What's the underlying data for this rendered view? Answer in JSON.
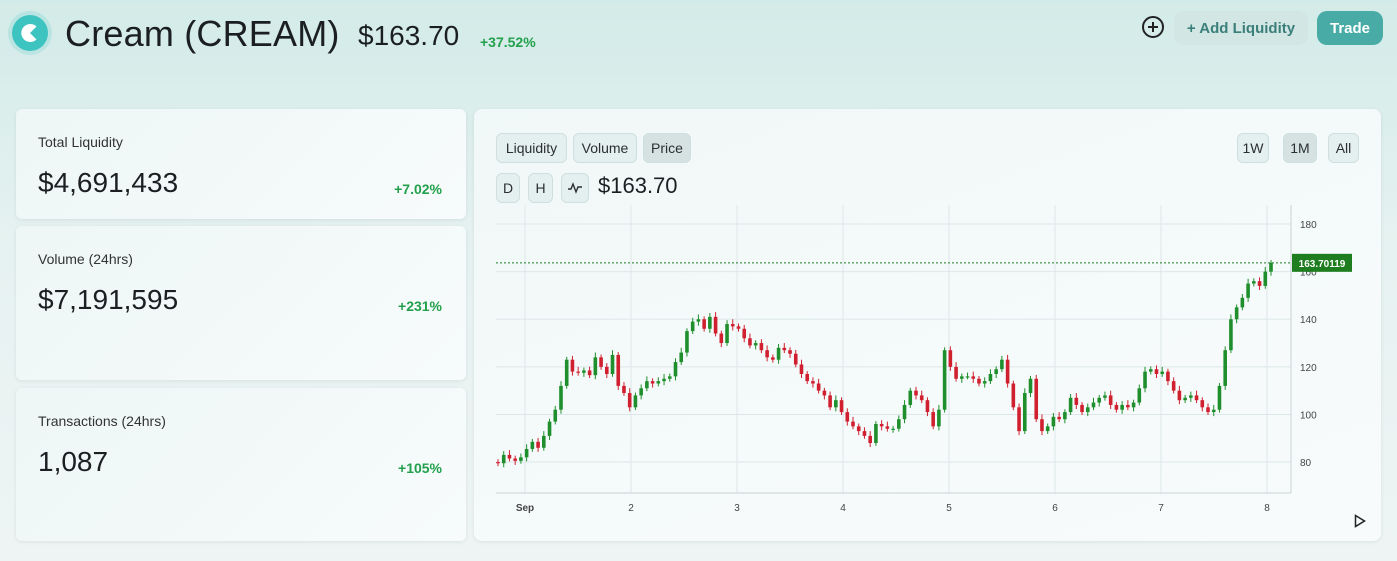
{
  "header": {
    "title": "Cream (CREAM)",
    "price": "$163.70",
    "change": "+37.52%",
    "add_liquidity_label": "+ Add Liquidity",
    "trade_label": "Trade"
  },
  "stats": [
    {
      "label": "Total Liquidity",
      "value": "$4,691,433",
      "change": "+7.02%"
    },
    {
      "label": "Volume (24hrs)",
      "value": "$7,191,595",
      "change": "+231%"
    },
    {
      "label": "Transactions (24hrs)",
      "value": "1,087",
      "change": "+105%"
    }
  ],
  "chart_panel": {
    "tabs": [
      "Liquidity",
      "Volume",
      "Price"
    ],
    "active_tab": "Price",
    "ranges": [
      "1W",
      "1M",
      "All"
    ],
    "active_range": "1M",
    "interval_buttons": [
      "D",
      "H"
    ],
    "line_toggle_icon": "line-chart-icon",
    "current_price": "$163.70",
    "price_tag": "163.70119"
  },
  "colors": {
    "up": "#1e8f2c",
    "down": "#d0202f",
    "accent": "#48aba5",
    "positive_text": "#22a04b"
  },
  "chart_data": {
    "type": "candlestick",
    "x_tick_labels": [
      "Sep",
      "2",
      "3",
      "4",
      "5",
      "6",
      "7",
      "8"
    ],
    "y_ticks": [
      80,
      100,
      120,
      140,
      160,
      180
    ],
    "ylim": [
      67,
      188
    ],
    "grid": true,
    "last_price_line": 163.70119,
    "closes": [
      79.5,
      83,
      81.5,
      80.5,
      82,
      85.5,
      88.5,
      86,
      91,
      97,
      102,
      112,
      123,
      118,
      117.5,
      118.5,
      116.5,
      124,
      120,
      117,
      125,
      112,
      109,
      103,
      108,
      111,
      114,
      113,
      114,
      115,
      116,
      122,
      126,
      135,
      139,
      140,
      136,
      141,
      134,
      130,
      138,
      137,
      136,
      132,
      129,
      130,
      127,
      124,
      123,
      128,
      127,
      125.5,
      121,
      117,
      114,
      113,
      110,
      108,
      103,
      106,
      101,
      97,
      95,
      93,
      91,
      88,
      96,
      95,
      94,
      94,
      98,
      104,
      110,
      108,
      106,
      101,
      95,
      102,
      127,
      120,
      115,
      116,
      116,
      115,
      113,
      114,
      117,
      119,
      123,
      113,
      103,
      93,
      109,
      115,
      98,
      93,
      95,
      99,
      98,
      101,
      107,
      104,
      101,
      103,
      105,
      107,
      108,
      104,
      102,
      104,
      103,
      105,
      111,
      118,
      119,
      117,
      118,
      114,
      110,
      106,
      107,
      108,
      106,
      103,
      101,
      102,
      112,
      127,
      140,
      145,
      149,
      155,
      156,
      154,
      160,
      163.7
    ]
  }
}
